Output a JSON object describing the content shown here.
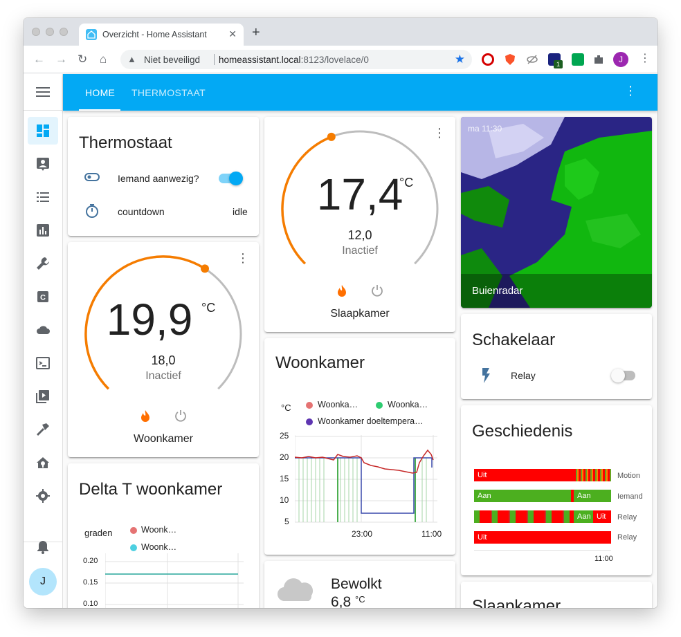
{
  "browser": {
    "tab_title": "Overzicht - Home Assistant",
    "security": "Niet beveiligd",
    "url_host": "homeassistant.local",
    "url_path": ":8123/lovelace/0",
    "profile_initial": "J",
    "ext_badge": "1"
  },
  "header": {
    "tabs": [
      "HOME",
      "THERMOSTAAT"
    ]
  },
  "sidebar": {
    "items": [
      "dashboard-icon",
      "map-icon",
      "logbook-icon",
      "history-icon",
      "wrench-icon",
      "code-icon",
      "cloud-icon",
      "terminal-icon",
      "media-icon",
      "hammer-icon",
      "hacs-icon",
      "settings-icon"
    ],
    "user_initial": "J"
  },
  "thermostaat_card": {
    "title": "Thermostaat",
    "rows": [
      {
        "label": "Iemand aanwezig?",
        "value": "on"
      },
      {
        "label": "countdown",
        "value": "idle"
      }
    ]
  },
  "woonkamer_thermostat": {
    "current": "19,9",
    "unit": "°C",
    "target": "18,0",
    "state": "Inactief",
    "name": "Woonkamer",
    "arc_fraction": 0.62
  },
  "slaapkamer_thermostat": {
    "current": "17,4",
    "unit": "°C",
    "target": "12,0",
    "state": "Inactief",
    "name": "Slaapkamer",
    "arc_fraction": 0.42
  },
  "delta_card": {
    "title": "Delta T woonkamer",
    "unit": "graden",
    "legend": [
      "Woonk…",
      "Woonk…"
    ],
    "yticks": [
      "0.20",
      "0.15",
      "0.10"
    ]
  },
  "woonkamer_graph": {
    "title": "Woonkamer",
    "unit": "°C",
    "legend": [
      "Woonka…",
      "Woonka…",
      "Woonkamer doeltempera…"
    ],
    "legend_colors": [
      "#db4437",
      "#0f9d58",
      "#673ab7"
    ],
    "yticks": [
      "25",
      "20",
      "15",
      "10",
      "5"
    ],
    "xticks": [
      "23:00",
      "11:00"
    ]
  },
  "weather_card": {
    "condition": "Bewolkt",
    "temp": "6,8",
    "unit": "°C"
  },
  "radar_card": {
    "timestamp": "ma 11:30",
    "label": "Buienradar"
  },
  "schakelaar_card": {
    "title": "Schakelaar",
    "row_label": "Relay"
  },
  "geschiedenis_card": {
    "title": "Geschiedenis",
    "rows": [
      {
        "name": "Motion",
        "segments": [
          {
            "label": "Uit"
          },
          {
            "label": ""
          }
        ]
      },
      {
        "name": "Iemand",
        "segments": [
          {
            "label": "Aan"
          },
          {
            "label": "Aan"
          }
        ]
      },
      {
        "name": "Relay",
        "segments": [
          {
            "label": "Aan"
          },
          {
            "label": "Uit"
          }
        ]
      },
      {
        "name": "Relay",
        "segments": [
          {
            "label": "Uit"
          }
        ]
      }
    ],
    "xtick": "11:00"
  },
  "slaapkamer_card": {
    "title": "Slaapkamer"
  }
}
